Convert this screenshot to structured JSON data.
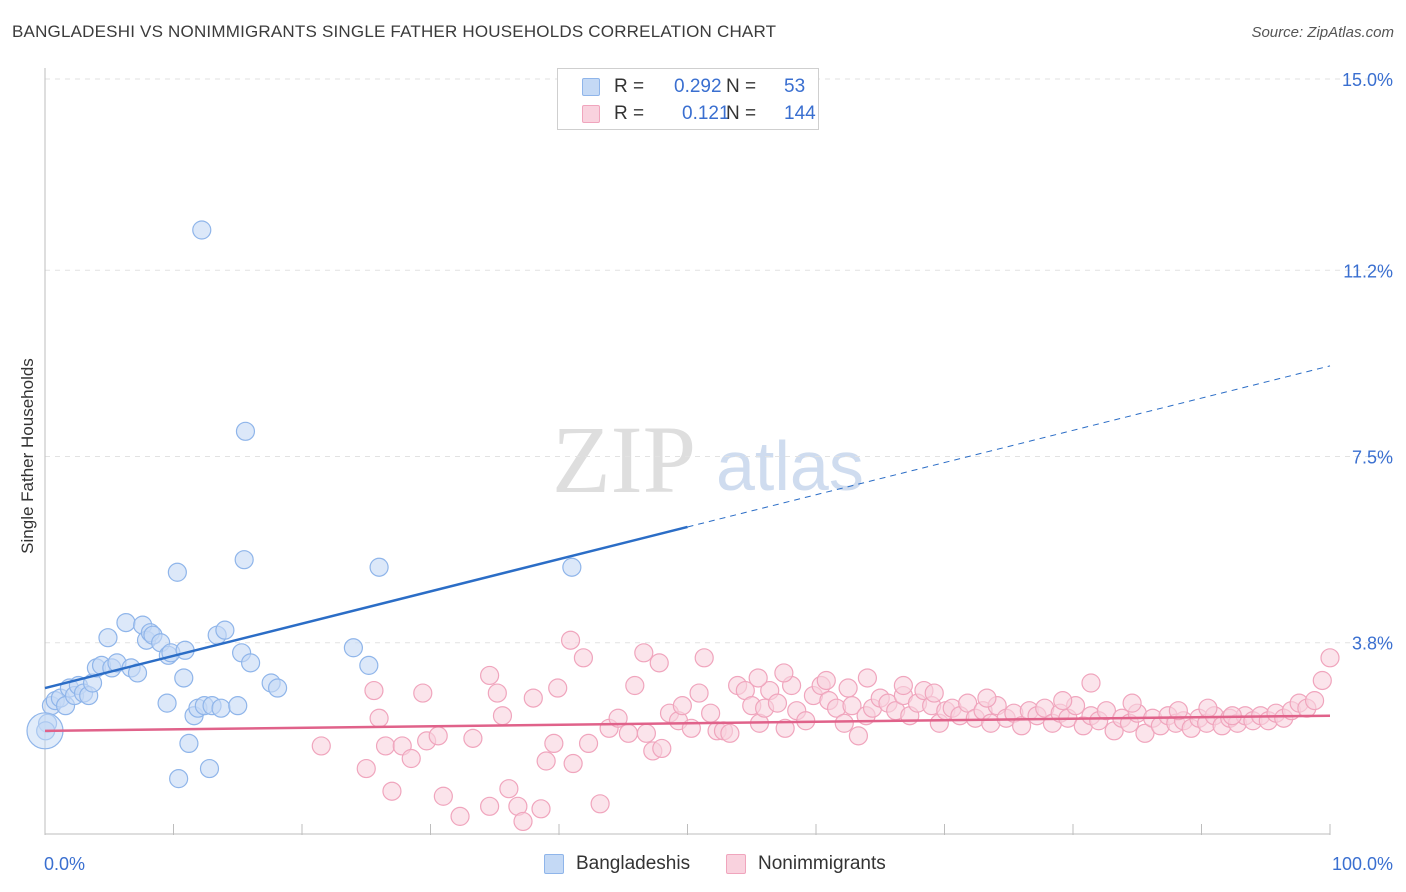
{
  "title": "BANGLADESHI VS NONIMMIGRANTS SINGLE FATHER HOUSEHOLDS CORRELATION CHART",
  "source": "Source: ZipAtlas.com",
  "watermark": {
    "zip": "ZIP",
    "atlas": "atlas"
  },
  "legend": {
    "rows": [
      {
        "r_label": "R =",
        "r_value": "0.292",
        "n_label": "N =",
        "n_value": "53"
      },
      {
        "r_label": "R =",
        "r_value": "0.121",
        "n_label": "N =",
        "n_value": "144"
      }
    ]
  },
  "chart_data": {
    "type": "scatter",
    "title": "BANGLADESHI VS NONIMMIGRANTS SINGLE FATHER HOUSEHOLDS CORRELATION CHART",
    "xlabel": "",
    "ylabel": "Single Father Households",
    "xlim": [
      0,
      100
    ],
    "ylim": [
      0,
      15
    ],
    "x_tick_labels": [
      "0.0%",
      "100.0%"
    ],
    "y_ticks": [
      3.8,
      7.5,
      11.2,
      15.0
    ],
    "y_tick_labels": [
      "3.8%",
      "7.5%",
      "11.2%",
      "15.0%"
    ],
    "grid": "horizontal dashed",
    "legend_position": "top-center",
    "series": [
      {
        "name": "Bangladeshis",
        "color": "#8fb5ea",
        "fill": "#c4d9f5",
        "line_color": "#2b6dc6",
        "r": 0.292,
        "n": 53,
        "trend": {
          "x0": 0,
          "y0": 2.9,
          "x1": 50,
          "y1": 6.1,
          "x_dash_end": 100,
          "y_dash_end": 9.3
        },
        "points": [
          [
            0.2,
            2.2
          ],
          [
            0.5,
            2.55
          ],
          [
            0.8,
            2.65
          ],
          [
            1.2,
            2.7
          ],
          [
            1.6,
            2.55
          ],
          [
            1.9,
            2.9
          ],
          [
            2.3,
            2.75
          ],
          [
            2.6,
            2.95
          ],
          [
            3.0,
            2.8
          ],
          [
            3.4,
            2.75
          ],
          [
            3.7,
            3.0
          ],
          [
            4.0,
            3.3
          ],
          [
            4.4,
            3.35
          ],
          [
            4.9,
            3.9
          ],
          [
            5.2,
            3.3
          ],
          [
            5.6,
            3.4
          ],
          [
            6.3,
            4.2
          ],
          [
            6.7,
            3.3
          ],
          [
            7.2,
            3.2
          ],
          [
            7.6,
            4.15
          ],
          [
            7.9,
            3.85
          ],
          [
            8.2,
            4.0
          ],
          [
            8.4,
            3.95
          ],
          [
            9.0,
            3.8
          ],
          [
            9.6,
            3.55
          ],
          [
            9.8,
            3.6
          ],
          [
            9.5,
            2.6
          ],
          [
            10.8,
            3.1
          ],
          [
            11.2,
            1.8
          ],
          [
            10.4,
            1.1
          ],
          [
            10.3,
            5.2
          ],
          [
            10.9,
            3.65
          ],
          [
            11.6,
            2.35
          ],
          [
            11.9,
            2.5
          ],
          [
            12.2,
            12.0
          ],
          [
            12.4,
            2.55
          ],
          [
            12.8,
            1.3
          ],
          [
            13.0,
            2.55
          ],
          [
            13.4,
            3.95
          ],
          [
            13.7,
            2.5
          ],
          [
            14.0,
            4.05
          ],
          [
            15.0,
            2.55
          ],
          [
            15.3,
            3.6
          ],
          [
            15.5,
            5.45
          ],
          [
            15.6,
            8.0
          ],
          [
            16.0,
            3.4
          ],
          [
            17.6,
            3.0
          ],
          [
            18.1,
            2.9
          ],
          [
            24.0,
            3.7
          ],
          [
            25.2,
            3.35
          ],
          [
            26.0,
            5.3
          ],
          [
            41.0,
            5.3
          ],
          [
            0.05,
            2.05
          ]
        ]
      },
      {
        "name": "Nonimmigrants",
        "color": "#f0a5bd",
        "fill": "#f9d2de",
        "line_color": "#e0628a",
        "r": 0.121,
        "n": 144,
        "trend": {
          "x0": 0,
          "y0": 2.05,
          "x1": 100,
          "y1": 2.35
        },
        "points": [
          [
            21.5,
            1.75
          ],
          [
            25.0,
            1.3
          ],
          [
            25.6,
            2.85
          ],
          [
            26.0,
            2.3
          ],
          [
            26.5,
            1.75
          ],
          [
            27.0,
            0.85
          ],
          [
            27.8,
            1.75
          ],
          [
            28.5,
            1.5
          ],
          [
            29.4,
            2.8
          ],
          [
            29.7,
            1.85
          ],
          [
            30.6,
            1.95
          ],
          [
            31.0,
            0.75
          ],
          [
            32.3,
            0.35
          ],
          [
            33.3,
            1.9
          ],
          [
            34.6,
            0.55
          ],
          [
            34.6,
            3.15
          ],
          [
            35.2,
            2.8
          ],
          [
            35.6,
            2.35
          ],
          [
            36.1,
            0.9
          ],
          [
            36.8,
            0.55
          ],
          [
            37.2,
            0.25
          ],
          [
            38.0,
            2.7
          ],
          [
            38.6,
            0.5
          ],
          [
            39.0,
            1.45
          ],
          [
            39.6,
            1.8
          ],
          [
            39.9,
            2.9
          ],
          [
            40.9,
            3.85
          ],
          [
            41.1,
            1.4
          ],
          [
            41.9,
            3.5
          ],
          [
            42.3,
            1.8
          ],
          [
            43.2,
            0.6
          ],
          [
            43.9,
            2.1
          ],
          [
            44.6,
            2.3
          ],
          [
            45.4,
            2.0
          ],
          [
            45.9,
            2.95
          ],
          [
            46.6,
            3.6
          ],
          [
            46.8,
            2.0
          ],
          [
            47.3,
            1.65
          ],
          [
            47.8,
            3.4
          ],
          [
            48.0,
            1.7
          ],
          [
            48.6,
            2.4
          ],
          [
            49.3,
            2.25
          ],
          [
            49.6,
            2.55
          ],
          [
            50.3,
            2.1
          ],
          [
            50.9,
            2.8
          ],
          [
            51.3,
            3.5
          ],
          [
            51.8,
            2.4
          ],
          [
            52.3,
            2.05
          ],
          [
            52.8,
            2.05
          ],
          [
            53.3,
            2.0
          ],
          [
            53.9,
            2.95
          ],
          [
            54.5,
            2.85
          ],
          [
            55.0,
            2.55
          ],
          [
            55.6,
            2.2
          ],
          [
            56.0,
            2.5
          ],
          [
            56.4,
            2.85
          ],
          [
            57.0,
            2.6
          ],
          [
            57.6,
            2.1
          ],
          [
            58.1,
            2.95
          ],
          [
            58.5,
            2.45
          ],
          [
            59.2,
            2.25
          ],
          [
            59.8,
            2.75
          ],
          [
            60.4,
            2.95
          ],
          [
            61.0,
            2.65
          ],
          [
            61.6,
            2.5
          ],
          [
            62.2,
            2.2
          ],
          [
            62.8,
            2.55
          ],
          [
            63.3,
            1.95
          ],
          [
            63.9,
            2.35
          ],
          [
            64.4,
            2.5
          ],
          [
            65.0,
            2.7
          ],
          [
            65.6,
            2.6
          ],
          [
            66.2,
            2.45
          ],
          [
            66.8,
            2.75
          ],
          [
            67.3,
            2.35
          ],
          [
            67.9,
            2.6
          ],
          [
            68.4,
            2.85
          ],
          [
            69.0,
            2.55
          ],
          [
            69.6,
            2.2
          ],
          [
            70.1,
            2.45
          ],
          [
            70.6,
            2.5
          ],
          [
            71.2,
            2.35
          ],
          [
            71.8,
            2.6
          ],
          [
            72.4,
            2.3
          ],
          [
            73.0,
            2.45
          ],
          [
            73.6,
            2.2
          ],
          [
            74.1,
            2.55
          ],
          [
            74.8,
            2.3
          ],
          [
            75.4,
            2.4
          ],
          [
            76.0,
            2.15
          ],
          [
            76.6,
            2.45
          ],
          [
            77.2,
            2.35
          ],
          [
            77.8,
            2.5
          ],
          [
            78.4,
            2.2
          ],
          [
            79.0,
            2.4
          ],
          [
            79.6,
            2.3
          ],
          [
            80.2,
            2.55
          ],
          [
            80.8,
            2.15
          ],
          [
            81.4,
            2.35
          ],
          [
            82.0,
            2.25
          ],
          [
            82.6,
            2.45
          ],
          [
            83.2,
            2.05
          ],
          [
            83.8,
            2.3
          ],
          [
            84.4,
            2.2
          ],
          [
            85.0,
            2.4
          ],
          [
            85.6,
            2.0
          ],
          [
            86.2,
            2.3
          ],
          [
            86.8,
            2.15
          ],
          [
            87.4,
            2.35
          ],
          [
            88.0,
            2.2
          ],
          [
            88.6,
            2.25
          ],
          [
            89.2,
            2.1
          ],
          [
            89.8,
            2.3
          ],
          [
            90.4,
            2.2
          ],
          [
            91.0,
            2.35
          ],
          [
            91.6,
            2.15
          ],
          [
            92.2,
            2.3
          ],
          [
            92.8,
            2.2
          ],
          [
            93.4,
            2.35
          ],
          [
            94.0,
            2.25
          ],
          [
            94.6,
            2.35
          ],
          [
            95.2,
            2.25
          ],
          [
            95.8,
            2.4
          ],
          [
            96.4,
            2.3
          ],
          [
            97.0,
            2.45
          ],
          [
            97.6,
            2.6
          ],
          [
            98.2,
            2.5
          ],
          [
            98.8,
            2.65
          ],
          [
            99.4,
            3.05
          ],
          [
            100.0,
            3.5
          ],
          [
            62.5,
            2.9
          ],
          [
            64.0,
            3.1
          ],
          [
            69.2,
            2.8
          ],
          [
            81.4,
            3.0
          ],
          [
            88.2,
            2.45
          ],
          [
            92.4,
            2.35
          ],
          [
            55.5,
            3.1
          ],
          [
            57.5,
            3.2
          ],
          [
            60.8,
            3.05
          ],
          [
            66.8,
            2.95
          ],
          [
            73.3,
            2.7
          ],
          [
            79.2,
            2.65
          ],
          [
            84.6,
            2.6
          ],
          [
            90.5,
            2.5
          ]
        ]
      }
    ]
  }
}
